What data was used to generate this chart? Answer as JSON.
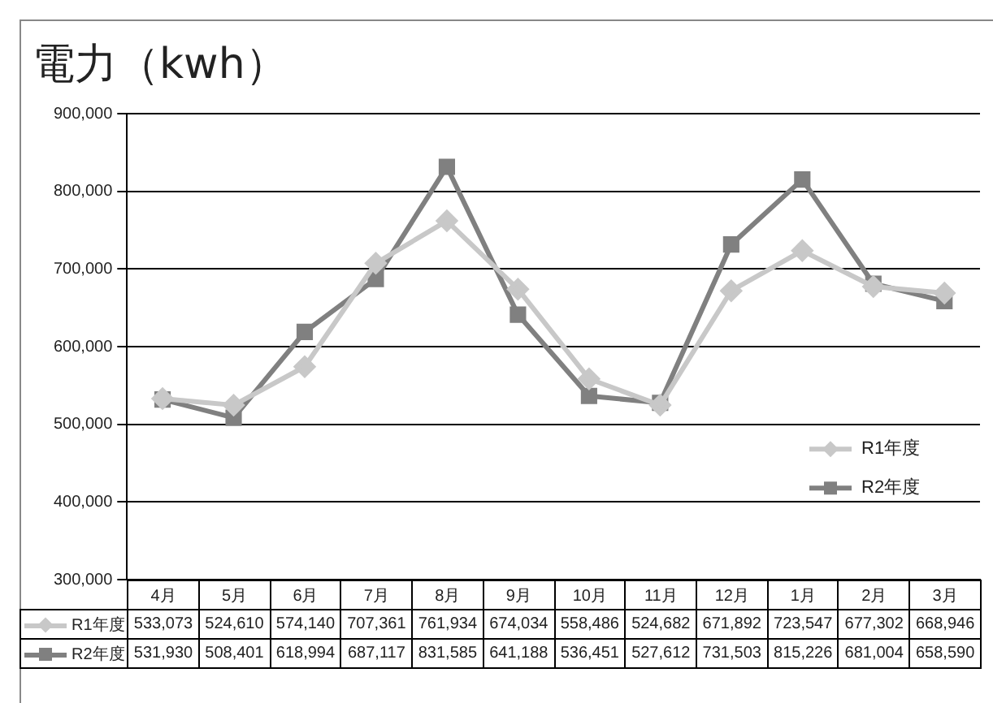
{
  "chart_data": {
    "type": "line",
    "title": "電力（kwh）",
    "categories": [
      "4月",
      "5月",
      "6月",
      "7月",
      "8月",
      "9月",
      "10月",
      "11月",
      "12月",
      "1月",
      "2月",
      "3月"
    ],
    "series": [
      {
        "name": "R1年度",
        "color": "#c8c8c8",
        "marker": "diamond",
        "values": [
          533073,
          524610,
          574140,
          707361,
          761934,
          674034,
          558486,
          524682,
          671892,
          723547,
          677302,
          668946
        ],
        "value_labels": [
          "533,073",
          "524,610",
          "574,140",
          "707,361",
          "761,934",
          "674,034",
          "558,486",
          "524,682",
          "671,892",
          "723,547",
          "677,302",
          "668,946"
        ]
      },
      {
        "name": "R2年度",
        "color": "#808080",
        "marker": "square",
        "values": [
          531930,
          508401,
          618994,
          687117,
          831585,
          641188,
          536451,
          527612,
          731503,
          815226,
          681004,
          658590
        ],
        "value_labels": [
          "531,930",
          "508,401",
          "618,994",
          "687,117",
          "831,585",
          "641,188",
          "536,451",
          "527,612",
          "731,503",
          "815,226",
          "681,004",
          "658,590"
        ]
      }
    ],
    "ylim": [
      300000,
      900000
    ],
    "yticks": [
      {
        "value": 300000,
        "label": "300,000"
      },
      {
        "value": 400000,
        "label": "400,000"
      },
      {
        "value": 500000,
        "label": "500,000"
      },
      {
        "value": 600000,
        "label": "600,000"
      },
      {
        "value": 700000,
        "label": "700,000"
      },
      {
        "value": 800000,
        "label": "800,000"
      },
      {
        "value": 900000,
        "label": "900,000"
      }
    ],
    "grid": "y",
    "legend": "right",
    "line_style": "solid"
  }
}
